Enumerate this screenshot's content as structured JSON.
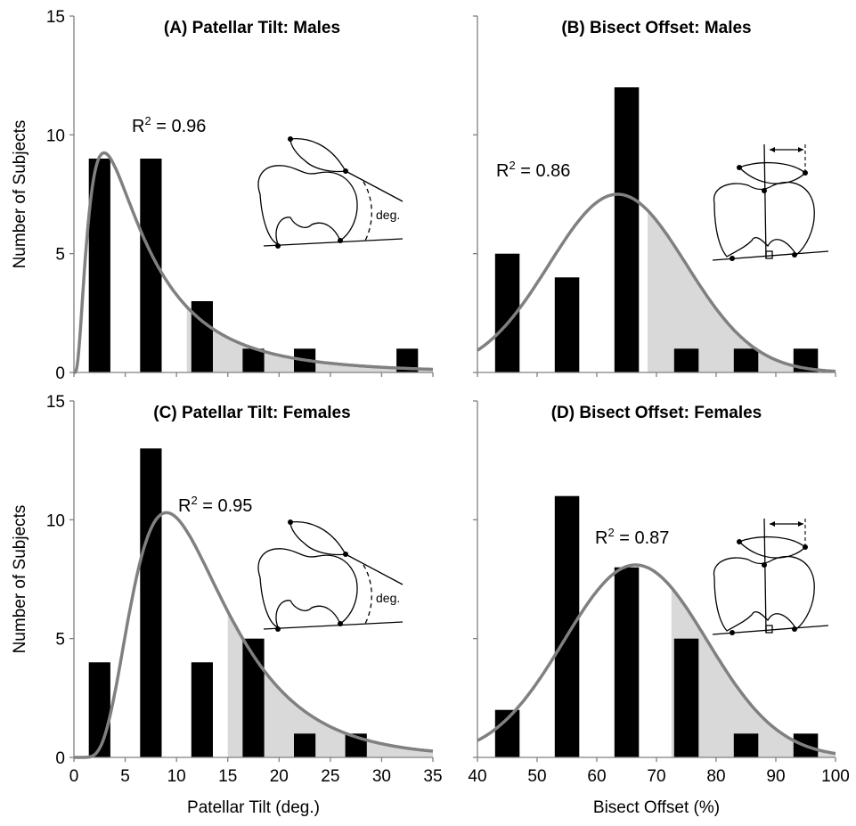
{
  "chart_data": [
    {
      "type": "bar",
      "title": "(A) Patellar Tilt: Males",
      "annotation": "R² = 0.96",
      "r2_prefix": "R",
      "r2_sup": "2",
      "r2_value": " = 0.96",
      "inset_label": "deg.",
      "xlabel": "",
      "ylabel": "Number of Subjects",
      "xlim": [
        0,
        35
      ],
      "ylim": [
        0,
        15
      ],
      "xticks": [],
      "yticks": [
        0,
        5,
        10,
        15
      ],
      "bar_centers": [
        2.5,
        7.5,
        12.5,
        17.5,
        22.5,
        27.5,
        32.5
      ],
      "values": [
        9,
        9,
        3,
        1,
        1,
        0,
        1
      ],
      "bar_width": 2.1,
      "fit": {
        "kind": "lognormal",
        "scale": 83,
        "mu": 1.8,
        "sigma": 0.85
      },
      "shaded_from": 11
    },
    {
      "type": "bar",
      "title": "(B) Bisect Offset: Males",
      "annotation": "R² = 0.86",
      "r2_prefix": "R",
      "r2_sup": "2",
      "r2_value": " = 0.86",
      "xlabel": "",
      "ylabel": "",
      "xlim": [
        40,
        100
      ],
      "ylim": [
        0,
        15
      ],
      "xticks": [],
      "yticks": [],
      "bar_centers": [
        45,
        55,
        65,
        75,
        85,
        95
      ],
      "values": [
        5,
        4,
        12,
        1,
        1,
        1
      ],
      "bar_width": 4.1,
      "fit": {
        "kind": "normal",
        "peak": 7.5,
        "mean": 63.5,
        "sd": 11.5
      },
      "shaded_from": 68.5
    },
    {
      "type": "bar",
      "title": "(C) Patellar Tilt: Females",
      "annotation": "R² = 0.95",
      "r2_prefix": "R",
      "r2_sup": "2",
      "r2_value": " = 0.95",
      "inset_label": "deg.",
      "xlabel": "Patellar Tilt (deg.)",
      "ylabel": "Number of Subjects",
      "xlim": [
        0,
        35
      ],
      "ylim": [
        0,
        15
      ],
      "xticks": [
        0,
        5,
        10,
        15,
        20,
        25,
        30,
        35
      ],
      "yticks": [
        0,
        5,
        10,
        15
      ],
      "bar_centers": [
        2.5,
        7.5,
        12.5,
        17.5,
        22.5,
        27.5
      ],
      "values": [
        4,
        13,
        4,
        5,
        1,
        1
      ],
      "bar_width": 2.1,
      "fit": {
        "kind": "lognormal",
        "scale": 132,
        "mu": 2.45,
        "sigma": 0.5
      },
      "shaded_from": 15
    },
    {
      "type": "bar",
      "title": "(D) Bisect Offset: Females",
      "annotation": "R² = 0.87",
      "r2_prefix": "R",
      "r2_sup": "2",
      "r2_value": " = 0.87",
      "xlabel": "Bisect Offset (%)",
      "ylabel": "",
      "xlim": [
        40,
        100
      ],
      "ylim": [
        0,
        15
      ],
      "xticks": [
        40,
        50,
        60,
        70,
        80,
        90,
        100
      ],
      "yticks": [],
      "bar_centers": [
        45,
        55,
        65,
        75,
        85,
        95
      ],
      "values": [
        2,
        11,
        8,
        5,
        1,
        1
      ],
      "bar_width": 4.1,
      "fit": {
        "kind": "normal",
        "peak": 8.1,
        "mean": 66.5,
        "sd": 12
      },
      "shaded_from": 72.5
    }
  ],
  "colors": {
    "bars": "#000000",
    "fit_line": "#808080",
    "shade": "#d9d9d9",
    "axis": "#808080"
  }
}
